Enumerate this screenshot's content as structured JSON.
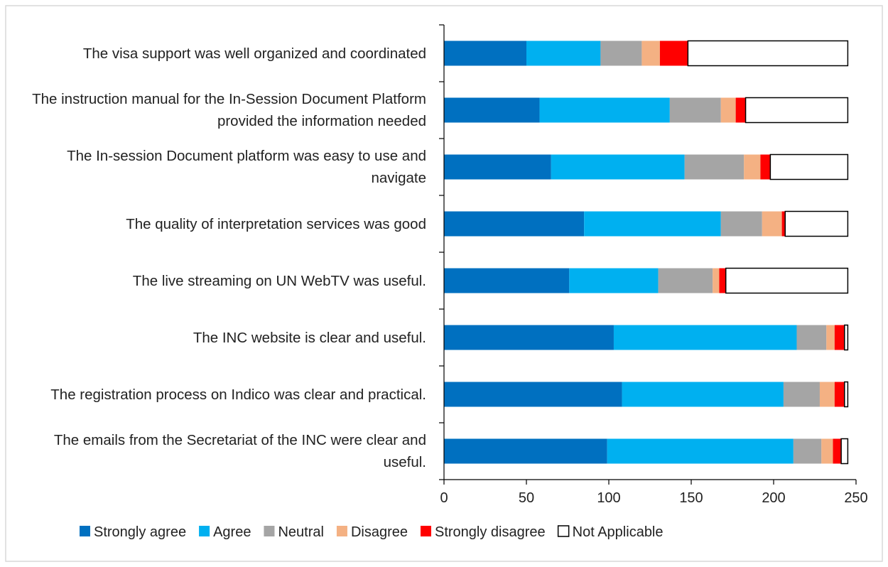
{
  "chart_data": {
    "type": "stacked_bar_horizontal",
    "categories": [
      "The visa support was well organized and coordinated",
      "The instruction manual for the In-Session Document Platform provided the information needed",
      "The In-session Document platform was easy to use and navigate",
      "The quality of interpretation services was good",
      "The live streaming on UN WebTV was useful.",
      "The INC website is clear and useful.",
      "The registration process on Indico was clear and practical.",
      "The emails from the Secretariat of the INC were clear and useful."
    ],
    "series": [
      {
        "name": "Strongly agree",
        "color": "#0070c0",
        "values": [
          50,
          58,
          65,
          85,
          76,
          103,
          108,
          99
        ]
      },
      {
        "name": "Agree",
        "color": "#00b0f0",
        "values": [
          45,
          79,
          81,
          83,
          54,
          111,
          98,
          113
        ]
      },
      {
        "name": "Neutral",
        "color": "#a5a5a5",
        "values": [
          25,
          31,
          36,
          25,
          33,
          18,
          22,
          17
        ]
      },
      {
        "name": "Disagree",
        "color": "#f4b183",
        "values": [
          11,
          9,
          10,
          12,
          4,
          5,
          9,
          7
        ]
      },
      {
        "name": "Strongly disagree",
        "color": "#ff0000",
        "values": [
          17,
          6,
          6,
          2,
          4,
          6,
          6,
          5
        ]
      },
      {
        "name": "Not Applicable",
        "color": "#ffffff",
        "values": [
          97,
          62,
          47,
          38,
          74,
          2,
          2,
          4
        ]
      }
    ],
    "xlim": [
      0,
      250
    ],
    "xticks": [
      0,
      50,
      100,
      150,
      200,
      250
    ],
    "legend": "bottom"
  }
}
